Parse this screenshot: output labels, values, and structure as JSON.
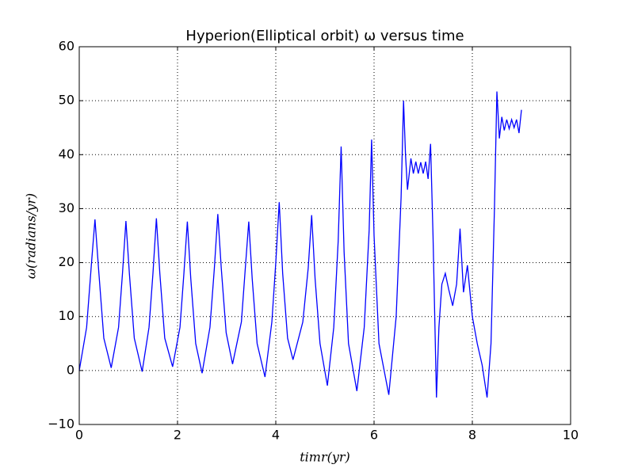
{
  "chart_data": {
    "type": "line",
    "title": "Hyperion(Elliptical orbit) ω versus time",
    "x_label": "timr(yr)",
    "y_label": "ω(radians/yr)",
    "xlim": [
      0,
      10
    ],
    "xticks": [
      0,
      2,
      4,
      6,
      8,
      10
    ],
    "ylim": [
      -10,
      60
    ],
    "yticks": [
      {
        "value": -10,
        "label": "−10"
      },
      0,
      10,
      20,
      30,
      40,
      50,
      60
    ],
    "grid": true,
    "x": [
      0,
      0.15,
      0.25,
      0.32,
      0.4,
      0.5,
      0.65,
      0.8,
      0.88,
      0.95,
      1.02,
      1.12,
      1.28,
      1.42,
      1.5,
      1.57,
      1.64,
      1.74,
      1.9,
      2.05,
      2.13,
      2.2,
      2.27,
      2.37,
      2.5,
      2.66,
      2.75,
      2.82,
      2.89,
      2.99,
      3.12,
      3.3,
      3.38,
      3.45,
      3.52,
      3.62,
      3.78,
      3.92,
      4.0,
      4.07,
      4.14,
      4.24,
      4.35,
      4.55,
      4.66,
      4.73,
      4.8,
      4.9,
      5.05,
      5.18,
      5.27,
      5.33,
      5.39,
      5.48,
      5.65,
      5.8,
      5.9,
      5.95,
      6.0,
      6.1,
      6.3,
      6.45,
      6.55,
      6.6,
      6.64,
      6.68,
      6.75,
      6.8,
      6.85,
      6.9,
      6.95,
      7.0,
      7.05,
      7.1,
      7.15,
      7.2,
      7.27,
      7.32,
      7.38,
      7.45,
      7.52,
      7.6,
      7.68,
      7.75,
      7.82,
      7.9,
      8.0,
      8.1,
      8.2,
      8.3,
      8.38,
      8.45,
      8.5,
      8.55,
      8.6,
      8.65,
      8.7,
      8.75,
      8.8,
      8.85,
      8.9,
      8.95,
      9.0
    ],
    "series": [
      {
        "color": "#0000ff",
        "values": [
          0,
          8,
          20,
          28,
          18,
          6,
          0.5,
          8,
          18,
          27.7,
          18,
          6,
          -0.2,
          8,
          18,
          28.2,
          18,
          6,
          0.7,
          8,
          18,
          27.6,
          17,
          5,
          -0.5,
          8,
          19,
          29,
          19,
          7,
          1.2,
          9,
          19,
          27.6,
          17,
          5,
          -1.2,
          9,
          20,
          31.2,
          18,
          6,
          2,
          9,
          19,
          28.8,
          17,
          5,
          -2.8,
          8,
          24,
          41.5,
          22,
          5,
          -3.8,
          8,
          26,
          42.8,
          25,
          5,
          -4.5,
          10,
          32,
          50,
          40,
          33.5,
          39.3,
          36.5,
          38.7,
          36.5,
          38.6,
          36.5,
          38.7,
          35.5,
          42,
          25,
          -5,
          8,
          16,
          18,
          15,
          12,
          16,
          26.3,
          14.5,
          19.5,
          10,
          5,
          1,
          -5,
          5,
          30,
          51.7,
          43,
          47,
          44.5,
          46.5,
          44.8,
          46.5,
          45,
          46.5,
          44,
          48.3
        ]
      }
    ]
  }
}
